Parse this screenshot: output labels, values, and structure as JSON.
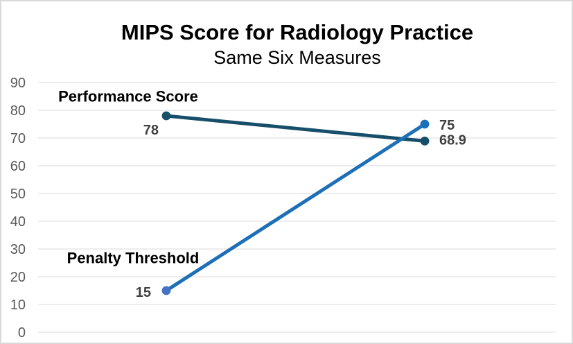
{
  "chart_data": {
    "type": "line",
    "title": "MIPS Score for Radiology Practice",
    "subtitle": "Same Six Measures",
    "ylim": [
      0,
      90
    ],
    "yticks": [
      0,
      10,
      20,
      30,
      40,
      50,
      60,
      70,
      80,
      90
    ],
    "grid": "horizontal",
    "legend": "none (inline series name annotations)",
    "x_axis_labels": "none",
    "series": [
      {
        "name": "Performance Score",
        "values": [
          78,
          68.9
        ],
        "point_labels": [
          "78",
          "68.9"
        ],
        "color": "#174f6a",
        "marker_colors": [
          "#174f6a",
          "#174f6a"
        ]
      },
      {
        "name": "Penalty Threshold",
        "values": [
          15,
          75
        ],
        "point_labels": [
          "15",
          "75"
        ],
        "color": "#1d70b7",
        "marker_colors": [
          "#4472c4",
          "#1d70b7"
        ]
      }
    ]
  },
  "colors": {
    "background": "#ffffff",
    "frame_border": "#d9d9d9",
    "gridline": "#d9d9d9",
    "tick_label": "#595959",
    "data_label": "#404040",
    "series_annotation": "#000000"
  }
}
